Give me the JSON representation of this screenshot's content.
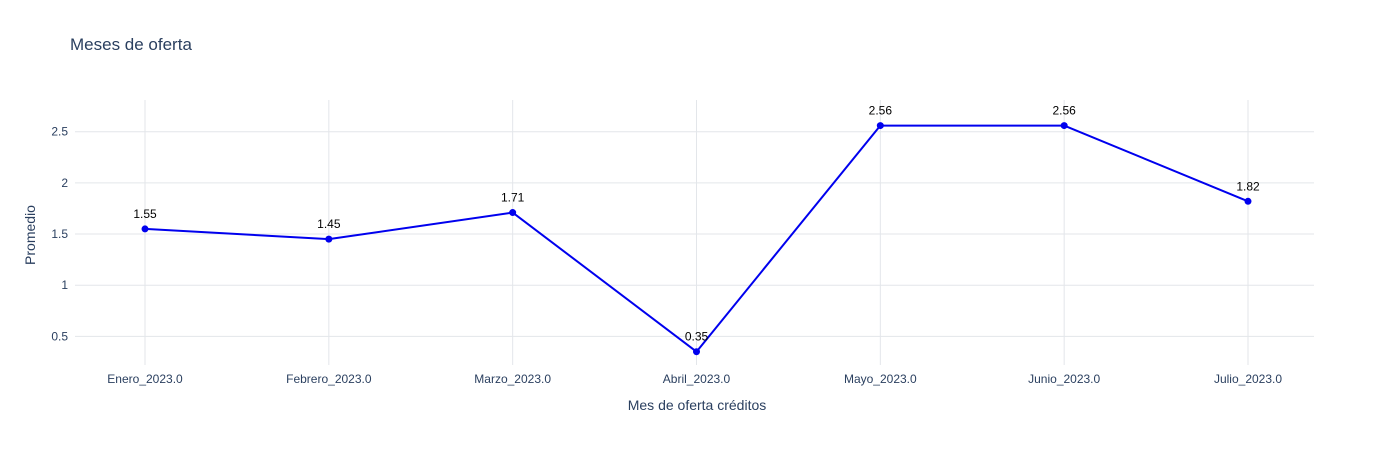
{
  "chart_data": {
    "type": "line",
    "title": "Meses de oferta",
    "xlabel": "Mes de oferta créditos",
    "ylabel": "Promedio",
    "categories": [
      "Enero_2023.0",
      "Febrero_2023.0",
      "Marzo_2023.0",
      "Abril_2023.0",
      "Mayo_2023.0",
      "Junio_2023.0",
      "Julio_2023.0"
    ],
    "series": [
      {
        "values": [
          1.55,
          1.45,
          1.71,
          0.35,
          2.56,
          2.56,
          1.82
        ],
        "labels": [
          "1.55",
          "1.45",
          "1.71",
          "0.35",
          "2.56",
          "2.56",
          "1.82"
        ],
        "color": "#0000ee"
      }
    ],
    "yticks": [
      0.5,
      1,
      1.5,
      2,
      2.5
    ],
    "ytick_labels": [
      "0.5",
      "1",
      "1.5",
      "2",
      "2.5"
    ],
    "ylim": [
      0.22,
      2.81
    ],
    "grid": true,
    "legend": "none"
  }
}
